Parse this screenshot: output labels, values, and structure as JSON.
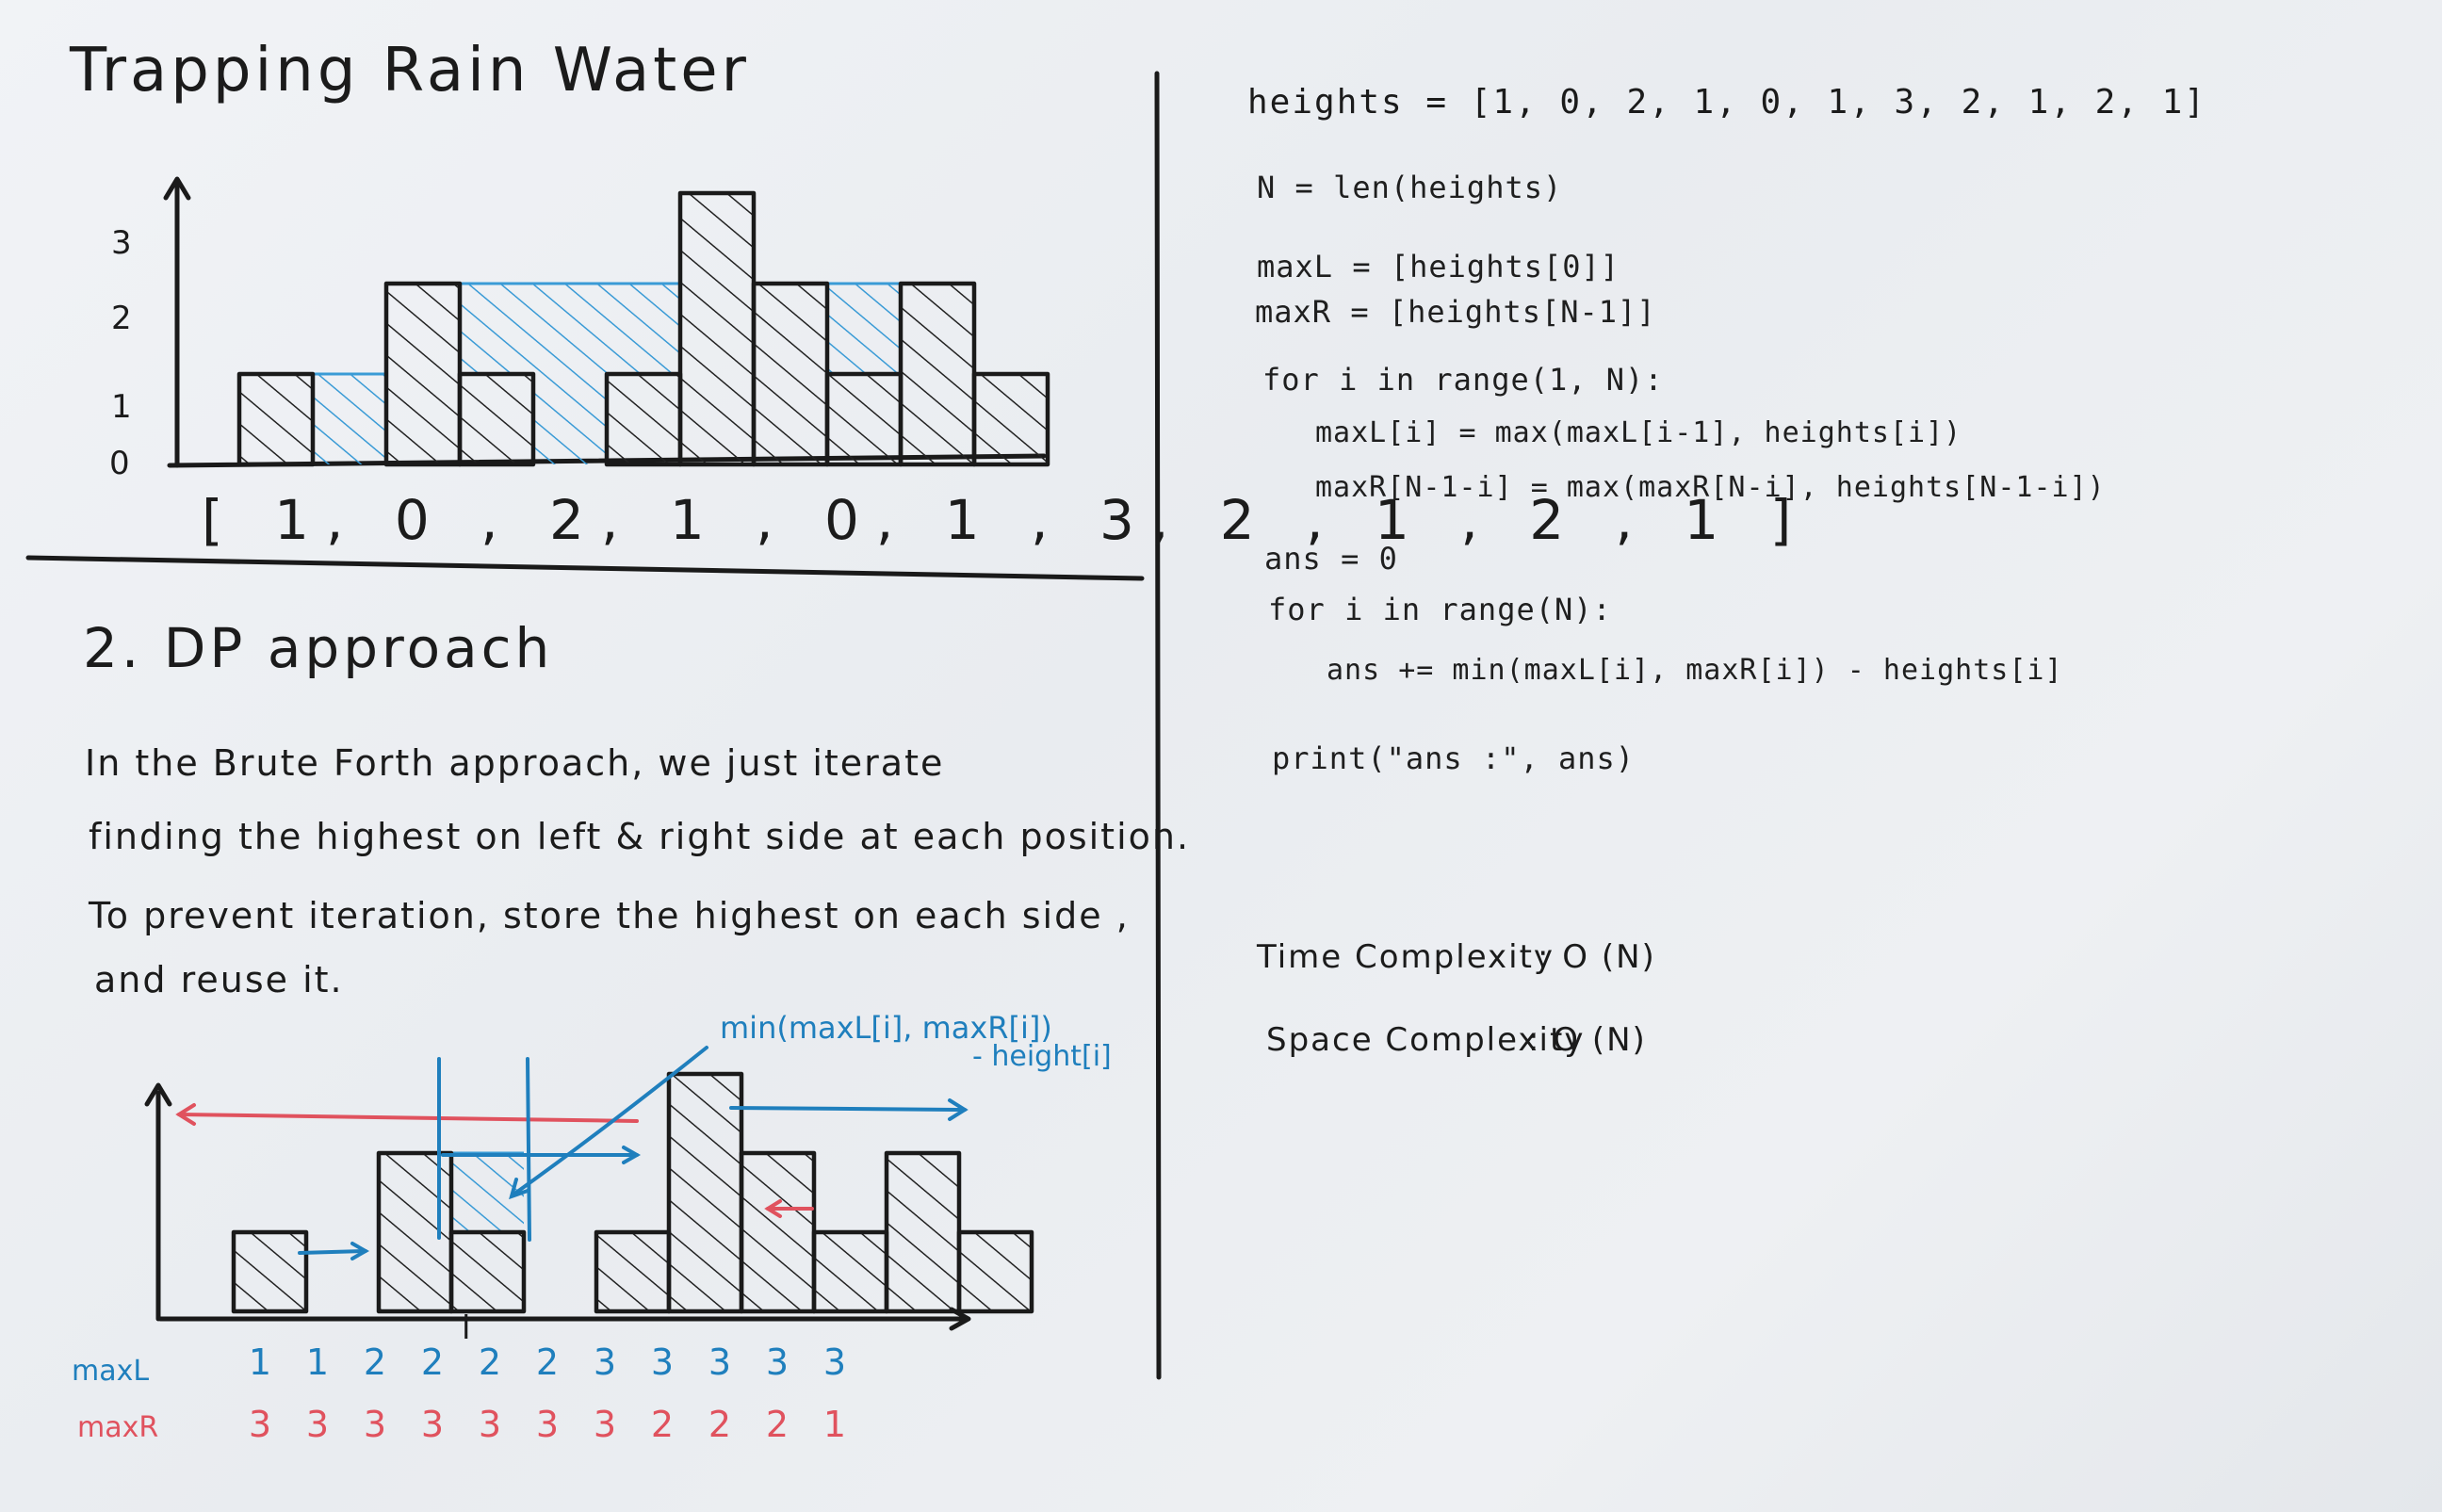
{
  "title": "Trapping Rain Water",
  "top_chart": {
    "y_ticks": [
      "3",
      "2",
      "1",
      "0"
    ],
    "array_label": "[ 1, 0 , 2, 1 , 0, 1 , 3, 2 , 1 , 2 , 1 ]",
    "heights": [
      1,
      0,
      2,
      1,
      0,
      1,
      3,
      2,
      1,
      2,
      1
    ]
  },
  "section_heading": "2.  DP  approach",
  "paragraph": [
    "In  the  Brute  Forth  approach,  we  just  iterate",
    "finding  the  highest  on  left  & right  side  at  each position.",
    "To  prevent  iteration,  store  the  highest  on  each  side ,",
    "and  reuse  it."
  ],
  "annotation": {
    "line1": "min(maxL[i], maxR[i])",
    "line2": "- height[i]"
  },
  "bottom_chart": {
    "index_marker": "i",
    "heights": [
      1,
      0,
      2,
      1,
      0,
      1,
      3,
      2,
      1,
      2,
      1
    ]
  },
  "maxL": {
    "label": "maxL",
    "values": [
      "1",
      "1",
      "2",
      "2",
      "2",
      "2",
      "3",
      "3",
      "3",
      "3",
      "3"
    ]
  },
  "maxR": {
    "label": "maxR",
    "values": [
      "3",
      "3",
      "3",
      "3",
      "3",
      "3",
      "3",
      "2",
      "2",
      "2",
      "1"
    ]
  },
  "code": [
    "heights = [1, 0, 2, 1, 0, 1, 3, 2, 1, 2, 1]",
    "N = len(heights)",
    "maxL = [heights[0]]",
    "maxR = [heights[N-1]]",
    "for i in range(1, N):",
    "maxL[i] = max(maxL[i-1], heights[i])",
    "maxR[N-1-i] = max(maxR[N-i], heights[N-1-i])",
    "ans = 0",
    "for i in range(N):",
    "ans += min(maxL[i], maxR[i]) - heights[i]",
    "print(\"ans :\", ans)"
  ],
  "complexity": {
    "time_label": "Time  Complexity",
    "time_value": ":  O (N)",
    "space_label": "Space  Complexity",
    "space_value": ":  O (N)"
  },
  "colors": {
    "blue": "#1f7fbd",
    "red": "#e0525e",
    "ink": "#1a1a1a"
  }
}
